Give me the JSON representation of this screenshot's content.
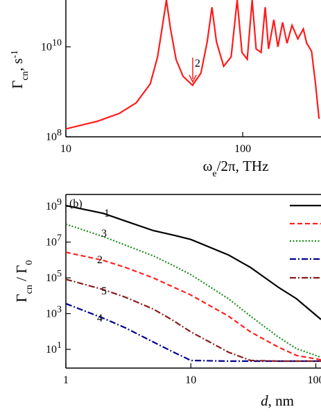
{
  "chart_data": [
    {
      "type": "line",
      "xscale": "log",
      "yscale": "log",
      "x_label": {
        "main": "ω",
        "sub": "e",
        "rest": "/2π, THz"
      },
      "y_label": {
        "main": "Γ",
        "sub": "cn",
        "rest": ", s",
        "sup": "-1"
      },
      "annotation": "2",
      "color": "#ff1a1a",
      "x": [
        10,
        15,
        20,
        25,
        30,
        33,
        35,
        37,
        39,
        42,
        46,
        52,
        58,
        63,
        67,
        71,
        78,
        86,
        93,
        99,
        106,
        113,
        119,
        127,
        134,
        140,
        150,
        158,
        168,
        178,
        190,
        205,
        220,
        230,
        245,
        258,
        270
      ],
      "values": [
        150000000,
        220000000,
        330000000,
        570000000,
        1500000000,
        6000000000,
        26000000000,
        110000000000,
        26000000000,
        5200000000,
        2200000000,
        1400000000,
        2600000000,
        13000000000,
        76000000000,
        13000000000,
        3700000000,
        6000000000,
        110000000000,
        7500000000,
        5300000000,
        110000000000,
        9000000000,
        7500000000,
        76000000000,
        9000000000,
        40000000000,
        10000000000,
        35000000000,
        12000000000,
        30000000000,
        15000000000,
        25000000000,
        12000000000,
        8000000000,
        1500000000,
        250000000
      ],
      "xlim": [
        10,
        277
      ],
      "ylim": [
        100000000,
        110000000000
      ],
      "xticks": [
        10,
        100
      ],
      "yticks": [
        {
          "value": 100000000,
          "label": "10",
          "exponent": "8"
        },
        {
          "value": 10000000000,
          "label": "10",
          "exponent": "10"
        }
      ]
    },
    {
      "type": "line",
      "xscale": "log",
      "yscale": "log",
      "panel_label": "(b)",
      "x_label": {
        "main": "d",
        "rest": ", nm"
      },
      "y_label": {
        "main": "Γ",
        "sub": "cn",
        "rest": " / Γ",
        "sub2": "0"
      },
      "legend": "upper right",
      "x": [
        1,
        2,
        3,
        5,
        7,
        10,
        20,
        30,
        50,
        70,
        110
      ],
      "series": [
        {
          "name": "1",
          "color": "#000000",
          "dash": "solid",
          "values": [
            1100000000,
            400000000,
            150000000,
            44000000,
            26000000,
            14000000,
            1900000,
            380000,
            30000,
            6800,
            470
          ]
        },
        {
          "name": "2",
          "color": "#ff2020",
          "dash": "dashed",
          "values": [
            2700000,
            940000,
            380000,
            100000,
            34000,
            11000,
            720,
            95,
            13.5,
            4.6,
            2.6
          ]
        },
        {
          "name": "3",
          "color": "#1a8c1a",
          "dash": "dotted",
          "values": [
            100000000,
            20000000,
            6700000,
            1700000,
            550000,
            150000,
            6800,
            720,
            50,
            11,
            3.6
          ]
        },
        {
          "name": "4",
          "color": "#00008b",
          "dash": "dashdot",
          "values": [
            3600,
            550,
            160,
            26,
            8,
            2.4,
            2.2,
            2.2,
            2.2,
            2.2,
            2.2
          ]
        },
        {
          "name": "5",
          "color": "#8b1a1a",
          "dash": "dashdot",
          "values": [
            83000,
            22000,
            8200,
            1800,
            470,
            95,
            7,
            2.4,
            2.2,
            2.2,
            2.2
          ]
        }
      ],
      "xlim": [
        1,
        110
      ],
      "ylim": [
        0.9,
        4600000000
      ],
      "xticks": [
        1,
        10,
        100
      ],
      "yticks": [
        {
          "value": 10,
          "label": "10",
          "exponent": "1"
        },
        {
          "value": 1000,
          "label": "10",
          "exponent": "3"
        },
        {
          "value": 100000,
          "label": "10",
          "exponent": "5"
        },
        {
          "value": 10000000,
          "label": "10",
          "exponent": "7"
        },
        {
          "value": 1000000000,
          "label": "10",
          "exponent": "9"
        }
      ]
    }
  ]
}
